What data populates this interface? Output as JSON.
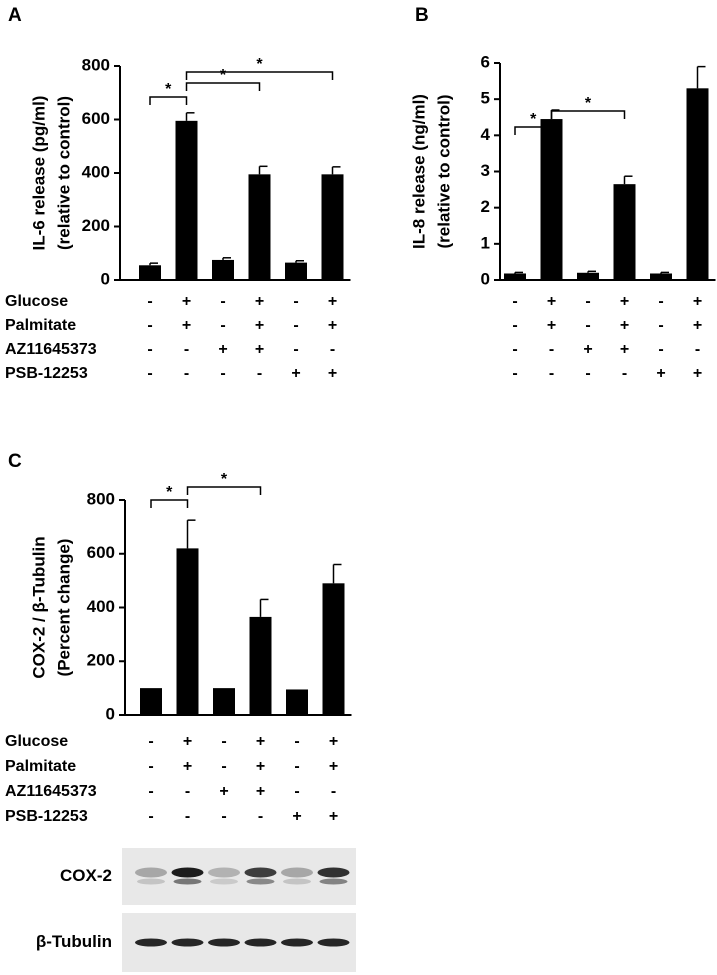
{
  "chart_data": [
    {
      "type": "bar",
      "panel": "A",
      "ylabel": [
        "IL-6 release (pg/ml)",
        "(relative to control)"
      ],
      "categories": [
        null,
        null,
        null,
        null,
        null,
        null
      ],
      "values": [
        55,
        595,
        75,
        395,
        65,
        395
      ],
      "errors": [
        8,
        30,
        8,
        30,
        7,
        28
      ],
      "color": "#000000",
      "ylim": [
        0,
        800
      ],
      "yticks": [
        0,
        200,
        400,
        600,
        800
      ],
      "annotations": [
        {
          "text": "*",
          "from": 0,
          "to": 1
        },
        {
          "text": "*",
          "from": 1,
          "to": 3
        },
        {
          "text": "*",
          "from": 1,
          "to": 5
        }
      ],
      "conditions": [
        {
          "name": "Glucose",
          "values": [
            "-",
            "+",
            "-",
            "+",
            "-",
            "+"
          ]
        },
        {
          "name": "Palmitate",
          "values": [
            "-",
            "+",
            "-",
            "+",
            "-",
            "+"
          ]
        },
        {
          "name": "AZ11645373",
          "values": [
            "-",
            "-",
            "+",
            "+",
            "-",
            "-"
          ]
        },
        {
          "name": "PSB-12253",
          "values": [
            "-",
            "-",
            "-",
            "-",
            "+",
            "+"
          ]
        }
      ]
    },
    {
      "type": "bar",
      "panel": "B",
      "ylabel": [
        "IL-8 release (ng/ml)",
        "(relative to control)"
      ],
      "categories": [
        null,
        null,
        null,
        null,
        null,
        null
      ],
      "values": [
        0.18,
        4.45,
        0.2,
        2.65,
        0.18,
        5.3
      ],
      "errors": [
        0.03,
        0.25,
        0.04,
        0.22,
        0.03,
        0.6
      ],
      "color": "#000000",
      "ylim": [
        0,
        6
      ],
      "yticks": [
        0,
        1,
        2,
        3,
        4,
        5,
        6
      ],
      "annotations": [
        {
          "text": "*",
          "from": 0,
          "to": 1
        },
        {
          "text": "*",
          "from": 1,
          "to": 3
        }
      ],
      "conditions": [
        {
          "values": [
            "-",
            "+",
            "-",
            "+",
            "-",
            "+"
          ]
        },
        {
          "values": [
            "-",
            "+",
            "-",
            "+",
            "-",
            "+"
          ]
        },
        {
          "values": [
            "-",
            "-",
            "+",
            "+",
            "-",
            "-"
          ]
        },
        {
          "values": [
            "-",
            "-",
            "-",
            "-",
            "+",
            "+"
          ]
        }
      ]
    },
    {
      "type": "bar",
      "panel": "C",
      "ylabel": [
        "COX-2 / β-Tubulin",
        "(Percent change)"
      ],
      "categories": [
        null,
        null,
        null,
        null,
        null,
        null
      ],
      "values": [
        100,
        620,
        100,
        365,
        95,
        490
      ],
      "errors": [
        0,
        105,
        0,
        65,
        0,
        70
      ],
      "color": "#000000",
      "ylim": [
        0,
        800
      ],
      "yticks": [
        0,
        200,
        400,
        600,
        800
      ],
      "annotations": [
        {
          "text": "*",
          "from": 0,
          "to": 1
        },
        {
          "text": "*",
          "from": 1,
          "to": 3
        }
      ],
      "conditions": [
        {
          "name": "Glucose",
          "values": [
            "-",
            "+",
            "-",
            "+",
            "-",
            "+"
          ]
        },
        {
          "name": "Palmitate",
          "values": [
            "-",
            "+",
            "-",
            "+",
            "-",
            "+"
          ]
        },
        {
          "name": "AZ11645373",
          "values": [
            "-",
            "-",
            "+",
            "+",
            "-",
            "-"
          ]
        },
        {
          "name": "PSB-12253",
          "values": [
            "-",
            "-",
            "-",
            "-",
            "+",
            "+"
          ]
        }
      ],
      "blot": {
        "rows": [
          "COX-2",
          "β-Tubulin"
        ]
      }
    }
  ]
}
